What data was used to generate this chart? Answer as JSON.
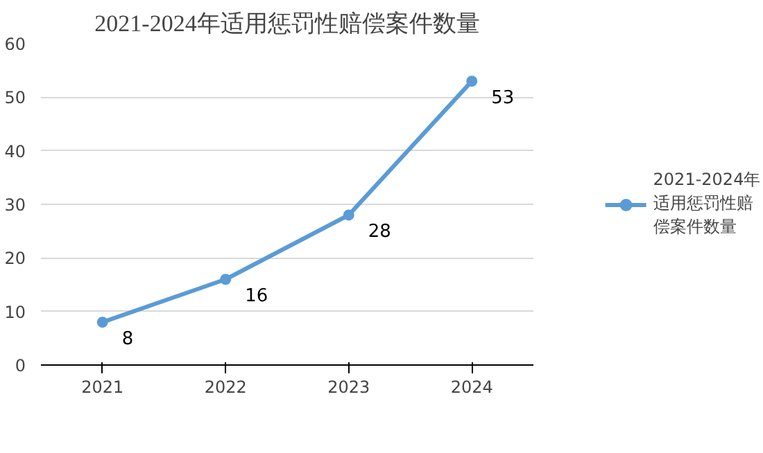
{
  "chart_data": {
    "type": "line",
    "title": "2021-2024年适用惩罚性赔偿案件数量",
    "categories": [
      "2021",
      "2022",
      "2023",
      "2024"
    ],
    "series": [
      {
        "name": "2021-2024年适用惩罚性赔偿案件数量",
        "color": "#5b9bd5",
        "values": [
          8,
          16,
          28,
          53
        ]
      }
    ],
    "ylim": [
      0,
      60
    ],
    "yticks": [
      0,
      10,
      20,
      30,
      40,
      50,
      60
    ],
    "grid": "y",
    "legend": "right",
    "marker": "circle",
    "line_style": "solid",
    "data_labels": true
  }
}
